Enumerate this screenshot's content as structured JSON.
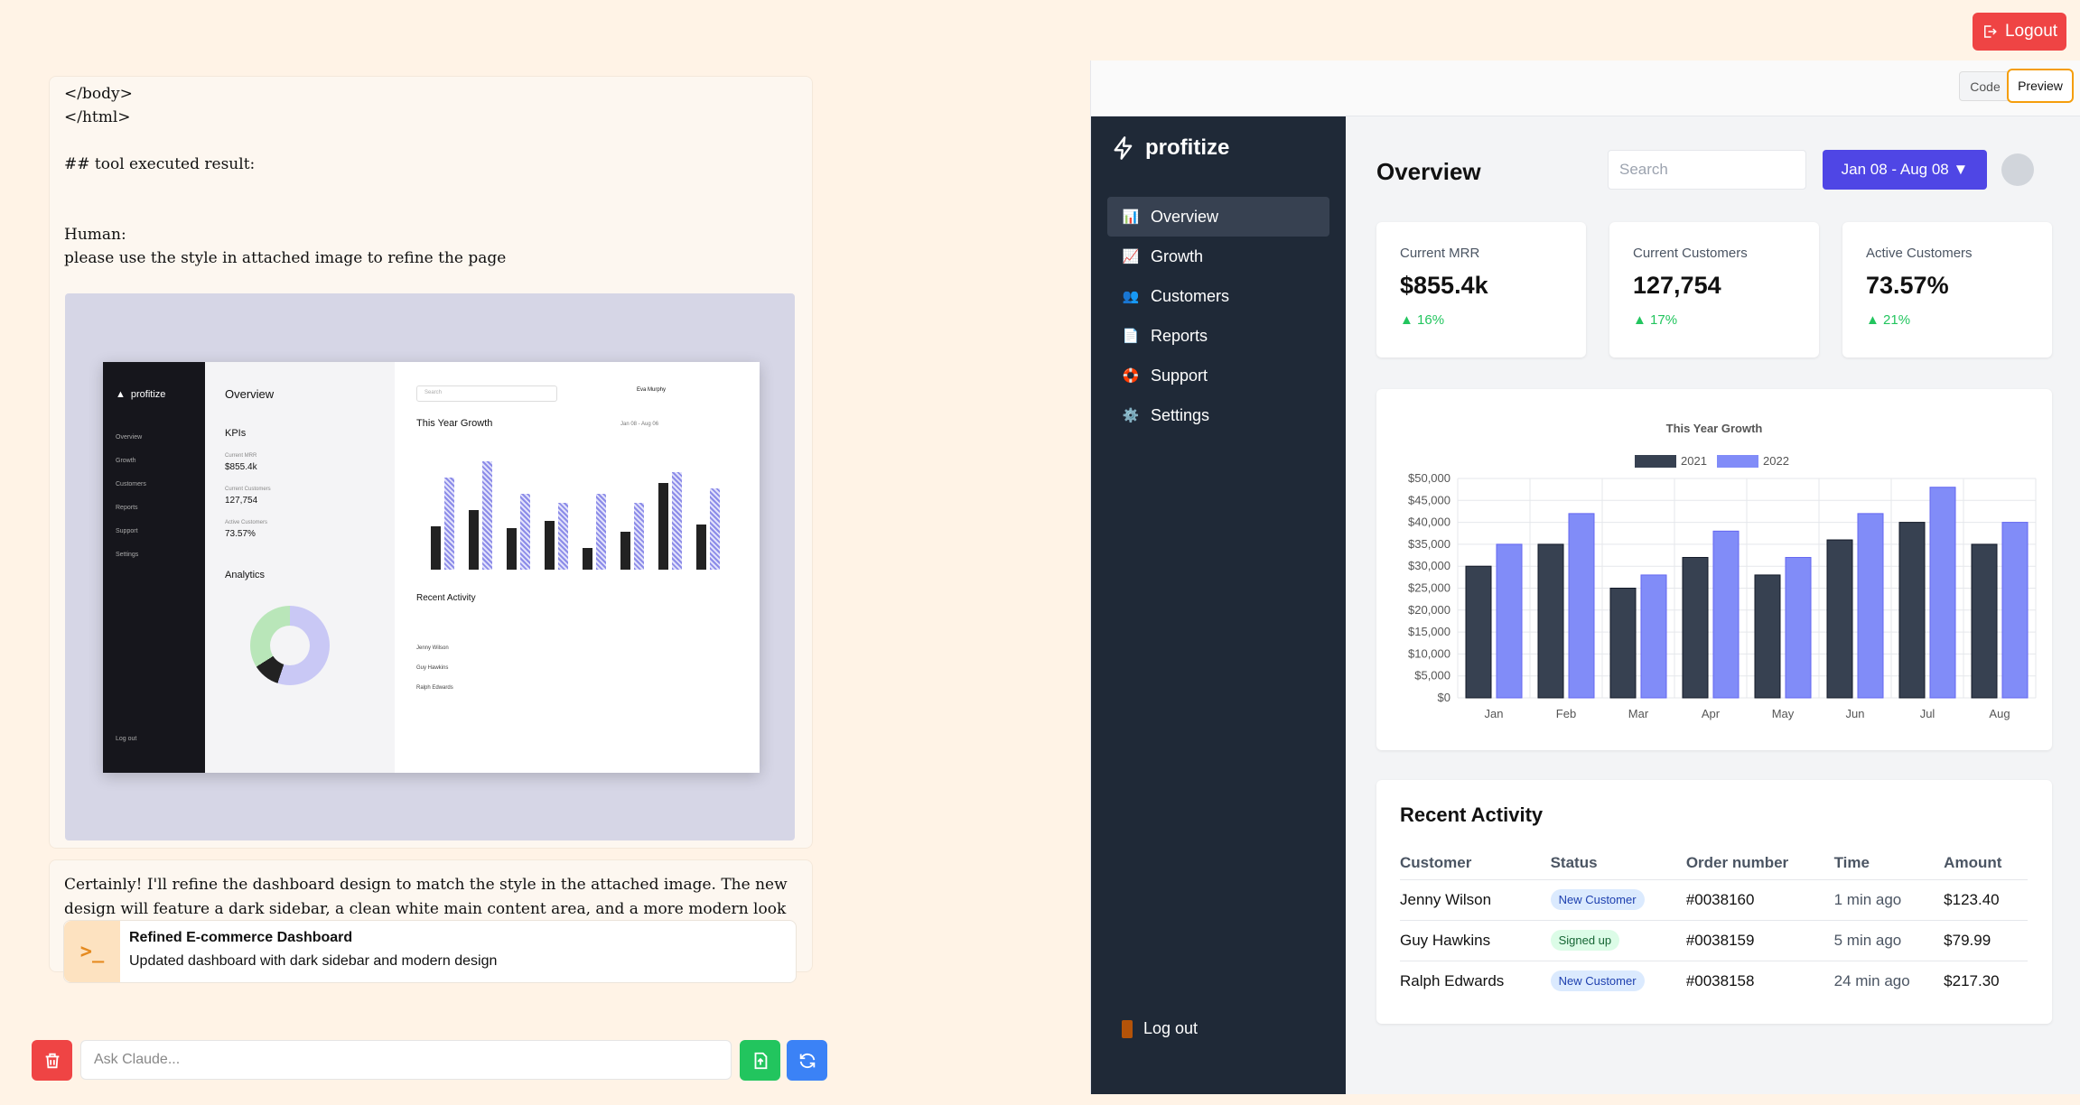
{
  "top_logout_label": "Logout",
  "chat": {
    "message_lines": [
      "</body>",
      "</html>",
      "",
      "## tool executed result:",
      "",
      "",
      "Human:",
      "please use the style in attached image to refine the page"
    ],
    "reply_text": "Certainly! I'll refine the dashboard design to match the style in the attached image. The new design will feature a dark sidebar, a clean white main content area, and a more modern look overall. Here's the updated code:",
    "artifact_title": "Refined E-commerce Dashboard",
    "artifact_subtitle": "Updated dashboard with dark sidebar and modern design",
    "input_placeholder": "Ask Claude...",
    "attached": {
      "logo": "profitize",
      "nav": [
        "Overview",
        "Growth",
        "Customers",
        "Reports",
        "Support",
        "Settings"
      ],
      "logout": "Log out",
      "overview": "Overview",
      "kpis": "KPIs",
      "kpi_items": [
        {
          "label": "Current MRR",
          "value": "$855.4k"
        },
        {
          "label": "Current Customers",
          "value": "127,754"
        },
        {
          "label": "Active Customers",
          "value": "73.57%"
        }
      ],
      "analytics": "Analytics",
      "search": "Search",
      "user": "Eva Murphy",
      "growth": "This Year Growth",
      "range": "Jan 08 - Aug 06",
      "recent": "Recent Activity",
      "rows": [
        "Jenny Wilson",
        "Guy Hawkins",
        "Ralph Edwards"
      ],
      "bars": [
        {
          "a": 40,
          "b": 85
        },
        {
          "a": 55,
          "b": 100
        },
        {
          "a": 38,
          "b": 70
        },
        {
          "a": 45,
          "b": 62
        },
        {
          "a": 20,
          "b": 70
        },
        {
          "a": 35,
          "b": 62
        },
        {
          "a": 80,
          "b": 90
        },
        {
          "a": 42,
          "b": 75
        }
      ]
    }
  },
  "preview": {
    "tab_code": "Code",
    "tab_preview": "Preview",
    "brand": "profitize",
    "nav": [
      {
        "icon": "📊",
        "label": "Overview",
        "active": true
      },
      {
        "icon": "📈",
        "label": "Growth"
      },
      {
        "icon": "👥",
        "label": "Customers"
      },
      {
        "icon": "📄",
        "label": "Reports"
      },
      {
        "icon": "🛟",
        "label": "Support"
      },
      {
        "icon": "⚙️",
        "label": "Settings"
      }
    ],
    "logout": "Log out",
    "title": "Overview",
    "search_placeholder": "Search",
    "date_range": "Jan 08 - Aug 08 ▼",
    "kpis": [
      {
        "label": "Current MRR",
        "value": "$855.4k",
        "change": "▲ 16%"
      },
      {
        "label": "Current Customers",
        "value": "127,754",
        "change": "▲ 17%"
      },
      {
        "label": "Active Customers",
        "value": "73.57%",
        "change": "▲ 21%"
      }
    ],
    "recent": {
      "title": "Recent Activity",
      "headers": [
        "Customer",
        "Status",
        "Order number",
        "Time",
        "Amount"
      ],
      "rows": [
        {
          "customer": "Jenny Wilson",
          "status": "New Customer",
          "status_type": "new",
          "order": "#0038160",
          "time": "1 min ago",
          "amount": "$123.40"
        },
        {
          "customer": "Guy Hawkins",
          "status": "Signed up",
          "status_type": "signed",
          "order": "#0038159",
          "time": "5 min ago",
          "amount": "$79.99"
        },
        {
          "customer": "Ralph Edwards",
          "status": "New Customer",
          "status_type": "new",
          "order": "#0038158",
          "time": "24 min ago",
          "amount": "$217.30"
        }
      ]
    }
  },
  "chart_data": {
    "type": "bar",
    "title": "This Year Growth",
    "categories": [
      "Jan",
      "Feb",
      "Mar",
      "Apr",
      "May",
      "Jun",
      "Jul",
      "Aug"
    ],
    "series": [
      {
        "name": "2021",
        "color": "#374151",
        "values": [
          30000,
          35000,
          25000,
          32000,
          28000,
          36000,
          40000,
          35000
        ]
      },
      {
        "name": "2022",
        "color": "#818cf8",
        "values": [
          35000,
          42000,
          28000,
          38000,
          32000,
          42000,
          48000,
          40000
        ]
      }
    ],
    "ylim": [
      0,
      50000
    ],
    "yticks": [
      "$0",
      "$5,000",
      "$10,000",
      "$15,000",
      "$20,000",
      "$25,000",
      "$30,000",
      "$35,000",
      "$40,000",
      "$45,000",
      "$50,000"
    ],
    "grid": true,
    "legend": "top"
  }
}
